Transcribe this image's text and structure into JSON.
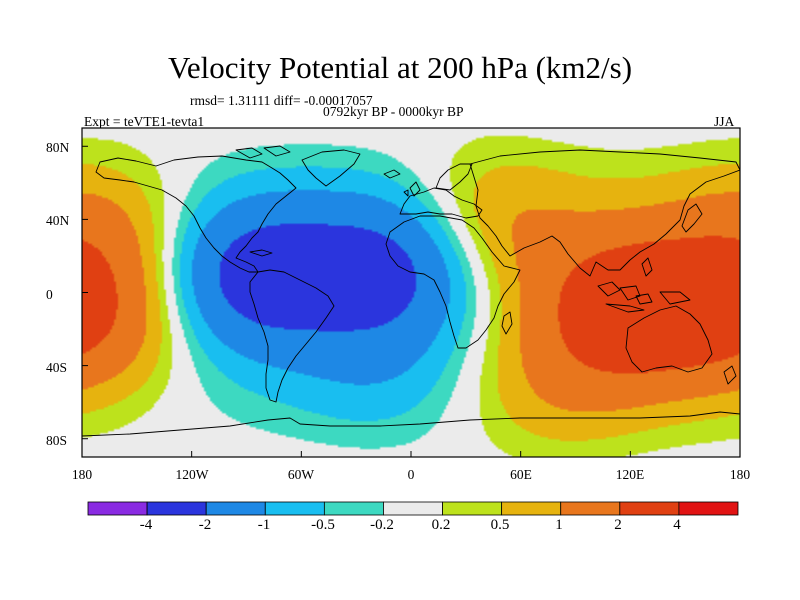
{
  "chart_data": {
    "type": "heatmap",
    "title": "Velocity Potential at 200 hPa (km2/s)",
    "stats_text": "rmsd= 1.31111 diff= -0.00017057",
    "period": "0792kyr BP - 0000kyr BP",
    "experiment": "Expt = teVTE1-tevta1",
    "season": "JJA",
    "projection": "cylindrical equidistant",
    "xlim": [
      -180,
      180
    ],
    "ylim": [
      -90,
      90
    ],
    "x_ticks": [
      "180",
      "120W",
      "60W",
      "0",
      "60E",
      "120E",
      "180"
    ],
    "y_ticks": [
      "80N",
      "40N",
      "0",
      "40S",
      "80S"
    ],
    "colorbar": {
      "levels": [
        -4,
        -2,
        -1,
        -0.5,
        -0.2,
        0.2,
        0.5,
        1,
        2,
        4
      ],
      "labels": [
        "-4",
        "-2",
        "-1",
        "-0.5",
        "-0.2",
        "0.2",
        "0.5",
        "1",
        "2",
        "4"
      ],
      "colors": [
        "#8a2be2",
        "#2b35dd",
        "#1e88e5",
        "#19bef0",
        "#3dd9c1",
        "#ebebeb",
        "#bde21c",
        "#e6b30f",
        "#e8761d",
        "#e04012",
        "#e11313"
      ]
    },
    "field_features": [
      {
        "name": "negative-center-central-america",
        "lon": -85,
        "lat": 10,
        "value": -2.2
      },
      {
        "name": "negative-center-tropical-atlantic",
        "lon": -8,
        "lat": 15,
        "value": -2.1
      },
      {
        "name": "negative-lobe-south-atlantic",
        "lon": -15,
        "lat": -40,
        "value": -0.6
      },
      {
        "name": "positive-center-maritime-continent",
        "lon": 122,
        "lat": -8,
        "value": 2.4
      },
      {
        "name": "positive-lobe-east-pacific",
        "lon": -175,
        "lat": -15,
        "value": 1.6
      },
      {
        "name": "positive-lobe-eurasia",
        "lon": 40,
        "lat": 35,
        "value": 1.1
      },
      {
        "name": "positive-lobe-north-pacific",
        "lon": -170,
        "lat": 30,
        "value": 1.1
      },
      {
        "name": "positive-lobe-southern-indian-ocean",
        "lon": 80,
        "lat": -50,
        "value": 0.7
      }
    ]
  }
}
